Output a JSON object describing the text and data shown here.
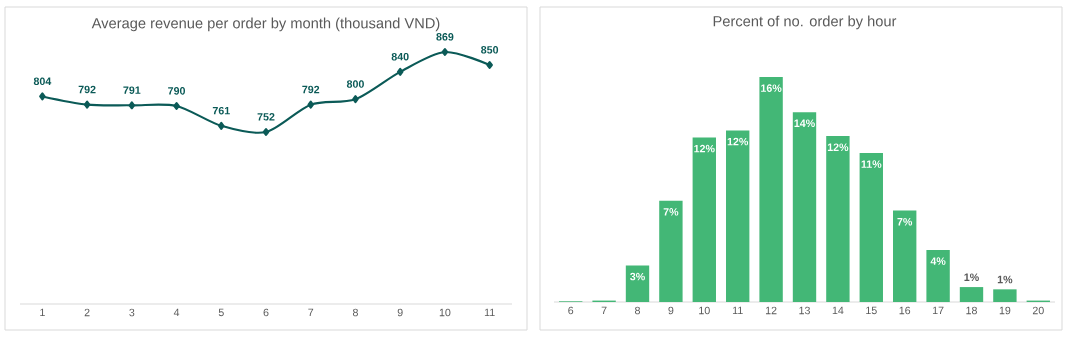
{
  "chart_data": [
    {
      "type": "line",
      "title": "Average revenue per order by month (thousand VND)",
      "categories": [
        "1",
        "2",
        "3",
        "4",
        "5",
        "6",
        "7",
        "8",
        "9",
        "10",
        "11"
      ],
      "values": [
        804,
        792,
        791,
        790,
        761,
        752,
        792,
        800,
        840,
        869,
        850
      ],
      "color": "#0b5a57",
      "marker": "diamond",
      "data_labels": true,
      "tick_labels": "x"
    },
    {
      "type": "bar",
      "title": "Percent of no. order by hour",
      "categories": [
        "6",
        "7",
        "8",
        "9",
        "10",
        "11",
        "12",
        "13",
        "14",
        "15",
        "16",
        "17",
        "18",
        "19",
        "20"
      ],
      "values": [
        0.05,
        0.1,
        2.6,
        7.2,
        11.7,
        12.2,
        16,
        13.5,
        11.8,
        10.6,
        6.5,
        3.7,
        1.06,
        0.9,
        0.1
      ],
      "value_labels": [
        null,
        null,
        "3%",
        "7%",
        "12%",
        "12%",
        "16%",
        "14%",
        "12%",
        "11%",
        "7%",
        "4%",
        "1%",
        "1%",
        null
      ],
      "color": "#43b776",
      "tick_labels": "x"
    }
  ]
}
